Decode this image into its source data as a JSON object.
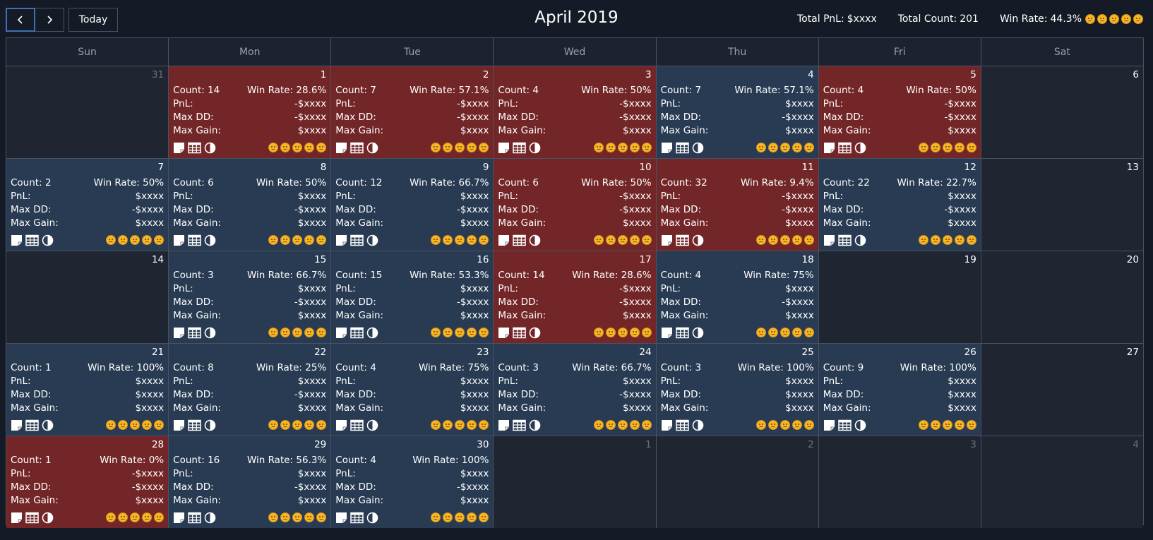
{
  "toolbar": {
    "prev_icon": "chevron-left-icon",
    "next_icon": "chevron-right-icon",
    "today_label": "Today",
    "title": "April 2019"
  },
  "summary": {
    "pnl_label": "Total PnL:",
    "pnl_value": "$xxxx",
    "count_label": "Total Count:",
    "count_value": "201",
    "winrate_label": "Win Rate:",
    "winrate_value": "44.3%",
    "emoji_icon": "smiley-face-icon",
    "emoji_count": 5
  },
  "weekdays": [
    "Sun",
    "Mon",
    "Tue",
    "Wed",
    "Thu",
    "Fri",
    "Sat"
  ],
  "labels": {
    "count": "Count:",
    "winrate": "Win Rate:",
    "pnl": "PnL:",
    "maxdd": "Max DD:",
    "maxgain": "Max Gain:"
  },
  "tool_icons": [
    "note-icon",
    "table-icon",
    "contrast-icon"
  ],
  "colors": {
    "loss_bg": "#732628",
    "win_bg": "#283b52",
    "empty_bg": "#1f2531",
    "accent": "#3f6fb5",
    "emoji": "#f6b727"
  },
  "weeks": [
    [
      {
        "day": "31",
        "other": true
      },
      {
        "day": "1",
        "status": "loss",
        "count": "14",
        "winrate": "28.6%",
        "pnl": "-$xxxx",
        "maxdd": "-$xxxx",
        "maxgain": "$xxxx"
      },
      {
        "day": "2",
        "status": "loss",
        "count": "7",
        "winrate": "57.1%",
        "pnl": "-$xxxx",
        "maxdd": "-$xxxx",
        "maxgain": "$xxxx"
      },
      {
        "day": "3",
        "status": "loss",
        "count": "4",
        "winrate": "50%",
        "pnl": "-$xxxx",
        "maxdd": "-$xxxx",
        "maxgain": "$xxxx"
      },
      {
        "day": "4",
        "status": "win",
        "count": "7",
        "winrate": "57.1%",
        "pnl": "$xxxx",
        "maxdd": "-$xxxx",
        "maxgain": "$xxxx"
      },
      {
        "day": "5",
        "status": "loss",
        "count": "4",
        "winrate": "50%",
        "pnl": "-$xxxx",
        "maxdd": "-$xxxx",
        "maxgain": "$xxxx"
      },
      {
        "day": "6"
      }
    ],
    [
      {
        "day": "7",
        "status": "win",
        "count": "2",
        "winrate": "50%",
        "pnl": "$xxxx",
        "maxdd": "-$xxxx",
        "maxgain": "$xxxx"
      },
      {
        "day": "8",
        "status": "win",
        "count": "6",
        "winrate": "50%",
        "pnl": "$xxxx",
        "maxdd": "-$xxxx",
        "maxgain": "$xxxx"
      },
      {
        "day": "9",
        "status": "win",
        "count": "12",
        "winrate": "66.7%",
        "pnl": "$xxxx",
        "maxdd": "-$xxxx",
        "maxgain": "$xxxx"
      },
      {
        "day": "10",
        "status": "loss",
        "count": "6",
        "winrate": "50%",
        "pnl": "-$xxxx",
        "maxdd": "-$xxxx",
        "maxgain": "$xxxx"
      },
      {
        "day": "11",
        "status": "loss",
        "count": "32",
        "winrate": "9.4%",
        "pnl": "-$xxxx",
        "maxdd": "-$xxxx",
        "maxgain": "$xxxx"
      },
      {
        "day": "12",
        "status": "win",
        "count": "22",
        "winrate": "22.7%",
        "pnl": "$xxxx",
        "maxdd": "-$xxxx",
        "maxgain": "$xxxx"
      },
      {
        "day": "13"
      }
    ],
    [
      {
        "day": "14"
      },
      {
        "day": "15",
        "status": "win",
        "count": "3",
        "winrate": "66.7%",
        "pnl": "$xxxx",
        "maxdd": "-$xxxx",
        "maxgain": "$xxxx"
      },
      {
        "day": "16",
        "status": "win",
        "count": "15",
        "winrate": "53.3%",
        "pnl": "$xxxx",
        "maxdd": "-$xxxx",
        "maxgain": "$xxxx"
      },
      {
        "day": "17",
        "status": "loss",
        "count": "14",
        "winrate": "28.6%",
        "pnl": "-$xxxx",
        "maxdd": "-$xxxx",
        "maxgain": "$xxxx"
      },
      {
        "day": "18",
        "status": "win",
        "count": "4",
        "winrate": "75%",
        "pnl": "$xxxx",
        "maxdd": "-$xxxx",
        "maxgain": "$xxxx"
      },
      {
        "day": "19"
      },
      {
        "day": "20"
      }
    ],
    [
      {
        "day": "21",
        "status": "win",
        "count": "1",
        "winrate": "100%",
        "pnl": "$xxxx",
        "maxdd": "$xxxx",
        "maxgain": "$xxxx"
      },
      {
        "day": "22",
        "status": "win",
        "count": "8",
        "winrate": "25%",
        "pnl": "$xxxx",
        "maxdd": "-$xxxx",
        "maxgain": "$xxxx"
      },
      {
        "day": "23",
        "status": "win",
        "count": "4",
        "winrate": "75%",
        "pnl": "$xxxx",
        "maxdd": "$xxxx",
        "maxgain": "$xxxx"
      },
      {
        "day": "24",
        "status": "win",
        "count": "3",
        "winrate": "66.7%",
        "pnl": "$xxxx",
        "maxdd": "-$xxxx",
        "maxgain": "$xxxx"
      },
      {
        "day": "25",
        "status": "win",
        "count": "3",
        "winrate": "100%",
        "pnl": "$xxxx",
        "maxdd": "$xxxx",
        "maxgain": "$xxxx"
      },
      {
        "day": "26",
        "status": "win",
        "count": "9",
        "winrate": "100%",
        "pnl": "$xxxx",
        "maxdd": "$xxxx",
        "maxgain": "$xxxx"
      },
      {
        "day": "27"
      }
    ],
    [
      {
        "day": "28",
        "status": "loss",
        "count": "1",
        "winrate": "0%",
        "pnl": "-$xxxx",
        "maxdd": "-$xxxx",
        "maxgain": "$xxxx"
      },
      {
        "day": "29",
        "status": "win",
        "count": "16",
        "winrate": "56.3%",
        "pnl": "$xxxx",
        "maxdd": "-$xxxx",
        "maxgain": "$xxxx"
      },
      {
        "day": "30",
        "status": "win",
        "count": "4",
        "winrate": "100%",
        "pnl": "$xxxx",
        "maxdd": "-$xxxx",
        "maxgain": "$xxxx"
      },
      {
        "day": "1",
        "other": true
      },
      {
        "day": "2",
        "other": true
      },
      {
        "day": "3",
        "other": true
      },
      {
        "day": "4",
        "other": true
      }
    ]
  ]
}
